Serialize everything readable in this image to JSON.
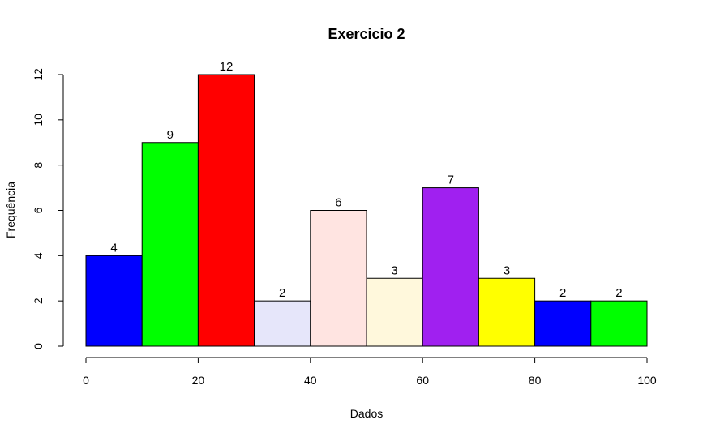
{
  "chart_data": {
    "type": "bar",
    "title": "Exercicio 2",
    "xlabel": "Dados",
    "ylabel": "Frequência",
    "bins": [
      {
        "from": 0,
        "to": 10,
        "value": 4,
        "color": "#0000FF"
      },
      {
        "from": 10,
        "to": 20,
        "value": 9,
        "color": "#00FF00"
      },
      {
        "from": 20,
        "to": 30,
        "value": 12,
        "color": "#FF0000"
      },
      {
        "from": 30,
        "to": 40,
        "value": 2,
        "color": "#E6E6FA"
      },
      {
        "from": 40,
        "to": 50,
        "value": 6,
        "color": "#FFE4E1"
      },
      {
        "from": 50,
        "to": 60,
        "value": 3,
        "color": "#FFF8DC"
      },
      {
        "from": 60,
        "to": 70,
        "value": 7,
        "color": "#A020F0"
      },
      {
        "from": 70,
        "to": 80,
        "value": 3,
        "color": "#FFFF00"
      },
      {
        "from": 80,
        "to": 90,
        "value": 2,
        "color": "#0000FF"
      },
      {
        "from": 90,
        "to": 100,
        "value": 2,
        "color": "#00FF00"
      }
    ],
    "xlim": [
      0,
      100
    ],
    "ylim": [
      0,
      12
    ],
    "x_ticks": [
      "0",
      "20",
      "40",
      "60",
      "80",
      "100"
    ],
    "y_ticks": [
      "0",
      "2",
      "4",
      "6",
      "8",
      "10",
      "12"
    ],
    "grid": false,
    "legend": "none"
  }
}
